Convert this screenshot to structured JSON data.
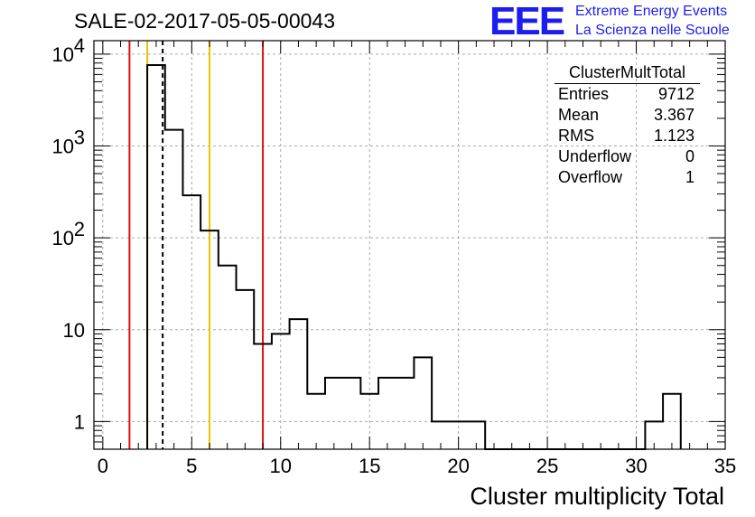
{
  "header": {
    "run_title": "SALE-02-2017-05-05-00043",
    "logo_text": "EEE",
    "logo_line1": "Extreme Energy Events",
    "logo_line2": "La Scienza nelle Scuole"
  },
  "stats": {
    "title": "ClusterMultTotal",
    "rows": [
      {
        "label": "Entries",
        "value": "9712"
      },
      {
        "label": "Mean",
        "value": "3.367"
      },
      {
        "label": "RMS",
        "value": "1.123"
      },
      {
        "label": "Underflow",
        "value": "0"
      },
      {
        "label": "Overflow",
        "value": "1"
      }
    ]
  },
  "chart_data": {
    "type": "histogram",
    "xlabel": "Cluster multiplicity Total",
    "ylabel": "",
    "xlim": [
      -0.5,
      35
    ],
    "ylim": [
      0.5,
      14000
    ],
    "yscale": "log",
    "grid": true,
    "legend": "top-right",
    "x_ticks": [
      "0",
      "5",
      "10",
      "15",
      "20",
      "25",
      "30",
      "35"
    ],
    "y_ticks": [
      {
        "value": 1,
        "label": "1"
      },
      {
        "value": 10,
        "label": "10"
      },
      {
        "value": 100,
        "label": "10",
        "sup": "2"
      },
      {
        "value": 1000,
        "label": "10",
        "sup": "3"
      },
      {
        "value": 10000,
        "label": "10",
        "sup": "4"
      }
    ],
    "bin_edges": [
      2.5,
      3.5,
      4.5,
      5.5,
      6.5,
      7.5,
      8.5,
      9.5,
      10.5,
      11.5,
      12.5,
      13.5,
      14.5,
      15.5,
      16.5,
      17.5,
      18.5,
      19.5,
      20.5,
      21.5,
      22.5,
      23.5,
      24.5,
      25.5,
      26.5,
      27.5,
      28.5,
      29.5,
      30.5,
      31.5,
      32.5
    ],
    "counts": [
      7600,
      1500,
      290,
      120,
      50,
      27,
      7,
      9,
      13,
      2,
      3,
      3,
      2,
      3,
      3,
      5,
      1,
      1,
      1,
      0,
      0,
      0,
      0,
      0,
      0,
      0,
      0,
      0,
      1,
      2
    ],
    "vertical_lines": [
      {
        "x": 1.5,
        "color": "#e01010",
        "style": "solid"
      },
      {
        "x": 9.0,
        "color": "#e01010",
        "style": "solid"
      },
      {
        "x": 2.5,
        "color": "#f0c000",
        "style": "solid"
      },
      {
        "x": 6.0,
        "color": "#f0c000",
        "style": "solid"
      },
      {
        "x": 3.367,
        "color": "#000000",
        "style": "dashed"
      }
    ]
  }
}
